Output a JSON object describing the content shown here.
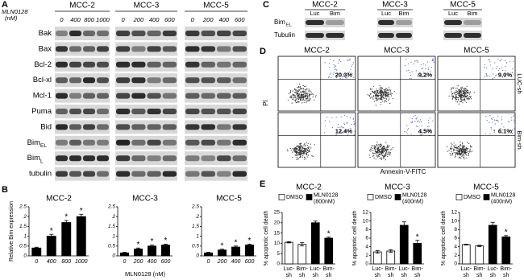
{
  "panel_labels": {
    "a": "A",
    "b": "B",
    "c": "C",
    "d": "D",
    "e": "E"
  },
  "western_a": {
    "treatment": "MLN0128",
    "unit": "(nM)",
    "groups": [
      {
        "name": "MCC-2",
        "doses": [
          "0",
          "400",
          "800",
          "1000"
        ]
      },
      {
        "name": "MCC-3",
        "doses": [
          "0",
          "200",
          "400",
          "600"
        ]
      },
      {
        "name": "MCC-5",
        "doses": [
          "0",
          "200",
          "400",
          "600"
        ]
      }
    ],
    "proteins": [
      {
        "name": "Bak"
      },
      {
        "name": "Bax"
      },
      {
        "name": "Bcl-2"
      },
      {
        "name": "Bcl-xl"
      },
      {
        "name": "Mcl-1"
      },
      {
        "name": "Puma"
      },
      {
        "name": "Bid"
      },
      {
        "name": "Bim",
        "sub": "EL"
      },
      {
        "name": "Bim",
        "sub": "L"
      },
      {
        "name": "tubulin"
      }
    ]
  },
  "western_c": {
    "groups": [
      {
        "name": "MCC-2",
        "lanes": [
          "Luc",
          "Bim"
        ]
      },
      {
        "name": "MCC-3",
        "lanes": [
          "Luc",
          "Bim"
        ]
      },
      {
        "name": "MCC-5",
        "lanes": [
          "Luc",
          "Bim"
        ]
      }
    ],
    "rows": [
      {
        "name": "Bim",
        "sub": "EL"
      },
      {
        "name": "Tubulin"
      }
    ]
  },
  "flow_d": {
    "columns": [
      "MCC-2",
      "MCC-3",
      "MCC-5"
    ],
    "rows": [
      "LUC-sh",
      "Bim-sh"
    ],
    "y_label": "PI",
    "x_label": "Annexin-V-FITC",
    "percentages": [
      [
        "20.3%",
        "9.2%",
        "9.0%"
      ],
      [
        "12.4%",
        "4.5%",
        "6.1%"
      ]
    ]
  },
  "chart_data": [
    {
      "type": "bar",
      "title": "MCC-2",
      "ylabel": "Relative Bim expression",
      "categories": [
        "0",
        "400",
        "800",
        "1000"
      ],
      "values": [
        0.4,
        1.0,
        1.7,
        2.0
      ],
      "errors": [
        0.04,
        0.1,
        0.1,
        0.12
      ],
      "significance": [
        null,
        "*",
        "*",
        "*"
      ],
      "color": "#000000",
      "ylim": [
        0,
        2.5
      ],
      "yticks": [
        0,
        0.5,
        1,
        1.5,
        2,
        2.5
      ]
    },
    {
      "type": "bar",
      "title": "MCC-3",
      "xlabel": "MLN0128 (nM)",
      "categories": [
        "0",
        "200",
        "400",
        "600"
      ],
      "values": [
        0.15,
        0.35,
        0.5,
        0.55
      ],
      "errors": [
        0.03,
        0.05,
        0.05,
        0.05
      ],
      "significance": [
        null,
        "*",
        "*",
        "*"
      ],
      "color": "#000000",
      "ylim": [
        0,
        2.5
      ],
      "yticks": [
        0,
        0.5,
        1,
        1.5,
        2,
        2.5
      ]
    },
    {
      "type": "bar",
      "title": "MCC-5",
      "categories": [
        "0",
        "200",
        "400",
        "600"
      ],
      "values": [
        0.15,
        0.3,
        0.45,
        0.55
      ],
      "errors": [
        0.03,
        0.04,
        0.05,
        0.05
      ],
      "significance": [
        null,
        "*",
        "*",
        "*"
      ],
      "color": "#000000",
      "ylim": [
        0,
        2.5
      ],
      "yticks": [
        0,
        0.5,
        1,
        1.5,
        2,
        2.5
      ]
    },
    {
      "type": "bar",
      "title": "MCC-2",
      "ylabel": "% apoptotic cell death",
      "categories": [
        "Luc-sh",
        "Bim-sh",
        "Luc-sh",
        "Bim-sh"
      ],
      "series": [
        {
          "name": "DMSO",
          "color": "#ffffff",
          "values": [
            10.5,
            9.5,
            null,
            null
          ],
          "errors": [
            0.3,
            0.8,
            null,
            null
          ]
        },
        {
          "name": "MLN0128 (800nM)",
          "color": "#000000",
          "values": [
            null,
            null,
            20,
            12.5
          ],
          "errors": [
            null,
            null,
            0.8,
            0.5
          ]
        }
      ],
      "significance": [
        null,
        null,
        null,
        "*"
      ],
      "ylim": [
        0,
        25
      ],
      "yticks": [
        0,
        5,
        10,
        15,
        20,
        25
      ]
    },
    {
      "type": "bar",
      "title": "MCC-3",
      "ylabel": "% apoptotic cell death",
      "categories": [
        "Luc-sh",
        "Bim-sh",
        "Luc-sh",
        "Bim-sh"
      ],
      "series": [
        {
          "name": "DMSO",
          "color": "#ffffff",
          "values": [
            2.8,
            3.0,
            null,
            null
          ],
          "errors": [
            0.3,
            0.3,
            null,
            null
          ]
        },
        {
          "name": "MLN0128 (400nM)",
          "color": "#000000",
          "values": [
            null,
            null,
            9,
            4.8
          ],
          "errors": [
            null,
            null,
            0.8,
            0.7
          ]
        }
      ],
      "significance": [
        null,
        null,
        null,
        "*"
      ],
      "ylim": [
        0,
        12
      ],
      "yticks": [
        0,
        2,
        4,
        6,
        8,
        10,
        12
      ]
    },
    {
      "type": "bar",
      "title": "MCC-5",
      "ylabel": "% apoptotic cell death",
      "categories": [
        "Luc-sh",
        "Bim-sh",
        "Luc-sh",
        "Bim-sh"
      ],
      "series": [
        {
          "name": "DMSO",
          "color": "#ffffff",
          "values": [
            4.5,
            4.2,
            null,
            null
          ],
          "errors": [
            0.1,
            0.15,
            null,
            null
          ]
        },
        {
          "name": "MLN0128 (400nM)",
          "color": "#000000",
          "values": [
            null,
            null,
            9,
            6.3
          ],
          "errors": [
            null,
            null,
            0.7,
            0.3
          ]
        }
      ],
      "significance": [
        null,
        null,
        null,
        "*"
      ],
      "ylim": [
        0,
        12
      ],
      "yticks": [
        0,
        2,
        4,
        6,
        8,
        10,
        12
      ]
    }
  ]
}
